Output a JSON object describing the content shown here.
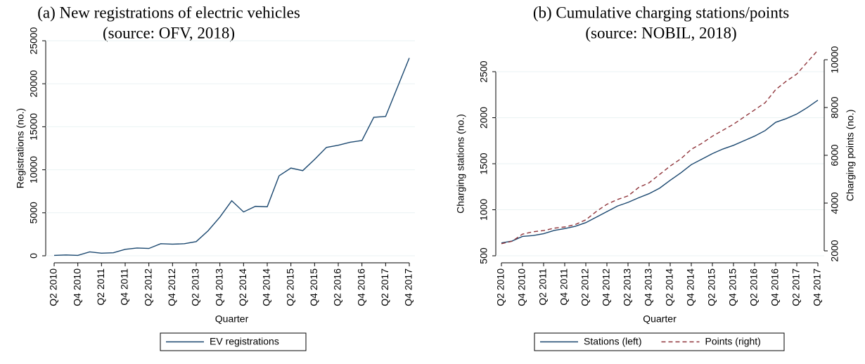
{
  "chart_data": [
    {
      "type": "line",
      "title": "(a) New registrations of electric vehicles",
      "subtitle": "(source: OFV, 2018)",
      "xlabel": "Quarter",
      "ylabel": "Registrations (no.)",
      "categories": [
        "Q2 2010",
        null,
        "Q4 2010",
        null,
        "Q2 2011",
        null,
        "Q4 2011",
        null,
        "Q2 2012",
        null,
        "Q4 2012",
        null,
        "Q2 2013",
        null,
        "Q4 2013",
        null,
        "Q2 2014",
        null,
        "Q4 2014",
        null,
        "Q2 2015",
        null,
        "Q4 2015",
        null,
        "Q2 2016",
        null,
        "Q4 2016",
        null,
        "Q2 2017",
        null,
        "Q4 2017"
      ],
      "series": [
        {
          "name": "EV registrations",
          "color": "#1a476f",
          "line_style": "solid",
          "values": [
            50,
            100,
            50,
            450,
            300,
            350,
            750,
            900,
            850,
            1400,
            1350,
            1400,
            1650,
            2900,
            4500,
            6400,
            5100,
            5750,
            5700,
            9300,
            10200,
            9900,
            11200,
            12600,
            12850,
            13200,
            13400,
            16100,
            16200,
            19600,
            23000
          ]
        }
      ],
      "ylim": [
        0,
        25000
      ],
      "yticks": [
        0,
        5000,
        10000,
        15000,
        20000,
        25000
      ],
      "grid": true
    },
    {
      "type": "line",
      "title": "(b) Cumulative charging stations/points",
      "subtitle": "(source: NOBIL, 2018)",
      "xlabel": "Quarter",
      "ylabel": "Charging stations (no.)",
      "y2label": "Charging points (no.)",
      "categories": [
        "Q2 2010",
        null,
        "Q4 2010",
        null,
        "Q2 2011",
        null,
        "Q4 2011",
        null,
        "Q2 2012",
        null,
        "Q4 2012",
        null,
        "Q2 2013",
        null,
        "Q4 2013",
        null,
        "Q2 2014",
        null,
        "Q4 2014",
        null,
        "Q2 2015",
        null,
        "Q4 2015",
        null,
        "Q2 2016",
        null,
        "Q4 2016",
        null,
        "Q2 2017",
        null,
        "Q4 2017"
      ],
      "series": [
        {
          "name": "Stations (left)",
          "color": "#1a476f",
          "line_style": "solid",
          "values": [
            640,
            660,
            710,
            720,
            740,
            775,
            795,
            820,
            860,
            920,
            980,
            1040,
            1080,
            1130,
            1175,
            1235,
            1320,
            1400,
            1490,
            1550,
            1610,
            1660,
            1700,
            1750,
            1800,
            1860,
            1950,
            1990,
            2040,
            2110,
            2190
          ]
        },
        {
          "name": "Points (right)",
          "color": "#90353b",
          "line_style": "dashed",
          "axis": "y2",
          "values": [
            2300,
            2400,
            2700,
            2800,
            2850,
            2950,
            3000,
            3100,
            3300,
            3650,
            3950,
            4150,
            4300,
            4650,
            4850,
            5200,
            5550,
            5850,
            6250,
            6500,
            6800,
            7050,
            7300,
            7600,
            7900,
            8200,
            8750,
            9100,
            9400,
            9900,
            10400
          ]
        }
      ],
      "ylim": [
        500,
        2500
      ],
      "yticks": [
        500,
        1000,
        1500,
        2000,
        2500
      ],
      "y2lim": [
        2000,
        10000
      ],
      "y2ticks": [
        2000,
        4000,
        6000,
        8000,
        10000
      ],
      "grid": true
    }
  ]
}
